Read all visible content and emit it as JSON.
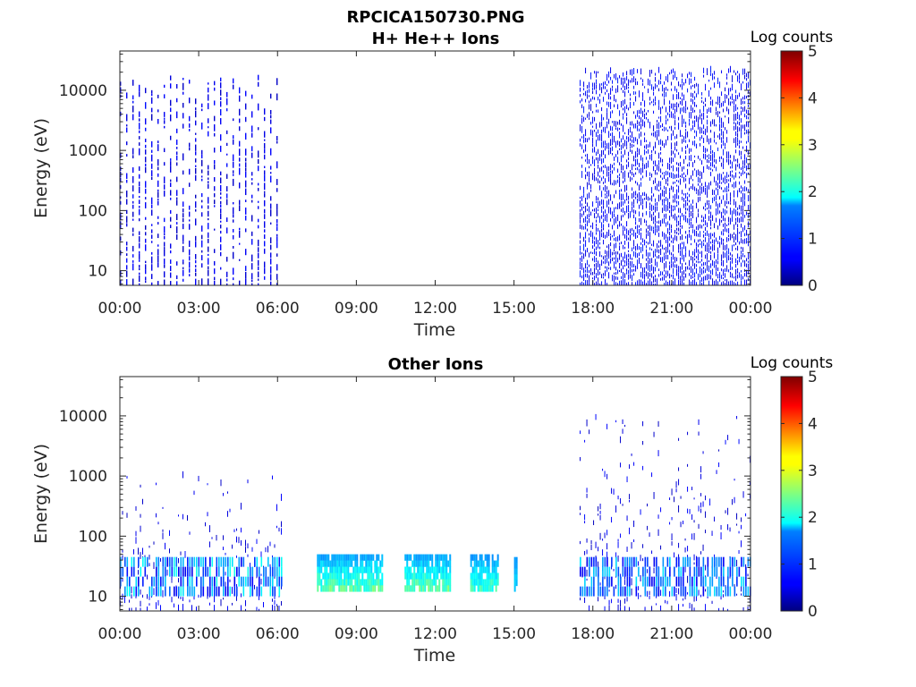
{
  "figure": {
    "title_line1": "RPCICA150730.PNG",
    "colormap": "jet"
  },
  "chart_data": [
    {
      "type": "heatmap",
      "title": "H+ He++ Ions",
      "xlabel": "Time",
      "ylabel": "Energy (eV)",
      "y_scale": "log",
      "ylim": [
        5.7,
        45000
      ],
      "xlim_hours": [
        0,
        24
      ],
      "x_tick_labels": [
        "00:00",
        "03:00",
        "06:00",
        "09:00",
        "12:00",
        "15:00",
        "18:00",
        "21:00",
        "00:00"
      ],
      "x_tick_hours": [
        0,
        3,
        6,
        9,
        12,
        15,
        18,
        21,
        24
      ],
      "y_tick_labels": [
        "10",
        "100",
        "1000",
        "10000"
      ],
      "y_tick_values": [
        10,
        100,
        1000,
        10000
      ],
      "colorbar": {
        "label": "Log counts",
        "range": [
          0,
          5
        ],
        "ticks": [
          "0",
          "1",
          "2",
          "3",
          "4",
          "5"
        ]
      },
      "data_intervals": [
        {
          "start": "00:00",
          "end": "06:10",
          "pattern": "striped",
          "max_energy_ev": 15000,
          "typical_log_counts": 0.3,
          "peak_log_counts": 1.0
        },
        {
          "start": "17:30",
          "end": "24:00",
          "pattern": "dense",
          "max_energy_ev": 20000,
          "typical_log_counts": 0.4,
          "peak_log_counts": 1.5
        }
      ]
    },
    {
      "type": "heatmap",
      "title": "Other Ions",
      "xlabel": "Time",
      "ylabel": "Energy (eV)",
      "y_scale": "log",
      "ylim": [
        5.7,
        45000
      ],
      "xlim_hours": [
        0,
        24
      ],
      "x_tick_labels": [
        "00:00",
        "03:00",
        "06:00",
        "09:00",
        "12:00",
        "15:00",
        "18:00",
        "21:00",
        "00:00"
      ],
      "x_tick_hours": [
        0,
        3,
        6,
        9,
        12,
        15,
        18,
        21,
        24
      ],
      "y_tick_labels": [
        "10",
        "100",
        "1000",
        "10000"
      ],
      "y_tick_values": [
        10,
        100,
        1000,
        10000
      ],
      "colorbar": {
        "label": "Log counts",
        "range": [
          0,
          5
        ],
        "ticks": [
          "0",
          "1",
          "2",
          "3",
          "4",
          "5"
        ]
      },
      "data_intervals": [
        {
          "start": "00:00",
          "end": "06:10",
          "pattern": "sparse",
          "max_energy_ev": 1000,
          "band_energy_ev": [
            10,
            45
          ],
          "band_log_counts": 1.8
        },
        {
          "start": "07:30",
          "end": "10:00",
          "pattern": "band",
          "energy_ev": [
            12,
            50
          ],
          "log_counts": [
            1.0,
            2.6
          ]
        },
        {
          "start": "10:50",
          "end": "12:35",
          "pattern": "band",
          "energy_ev": [
            12,
            50
          ],
          "log_counts": [
            1.0,
            2.6
          ]
        },
        {
          "start": "13:20",
          "end": "14:25",
          "pattern": "band",
          "energy_ev": [
            12,
            50
          ],
          "log_counts": [
            1.0,
            2.4
          ]
        },
        {
          "start": "15:00",
          "end": "15:05",
          "pattern": "band",
          "energy_ev": [
            12,
            45
          ],
          "log_counts": [
            1.2,
            1.8
          ]
        },
        {
          "start": "17:30",
          "end": "24:00",
          "pattern": "sparse",
          "max_energy_ev": 10000,
          "band_energy_ev": [
            10,
            45
          ],
          "band_log_counts": 1.6
        }
      ]
    }
  ]
}
